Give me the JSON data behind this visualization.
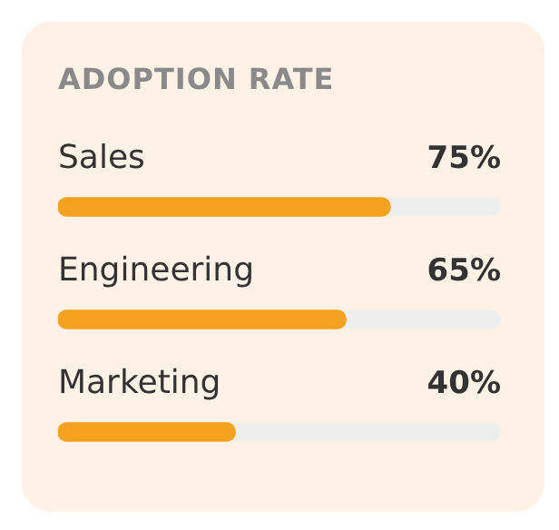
{
  "chart_data": {
    "type": "bar",
    "title": "ADOPTION RATE",
    "orientation": "horizontal",
    "categories": [
      "Sales",
      "Engineering",
      "Marketing"
    ],
    "values": [
      75,
      65,
      40
    ],
    "value_labels": [
      "75%",
      "65%",
      "40%"
    ],
    "color": "#f5a31f",
    "xlim": [
      0,
      100
    ],
    "tick_labels": false
  }
}
